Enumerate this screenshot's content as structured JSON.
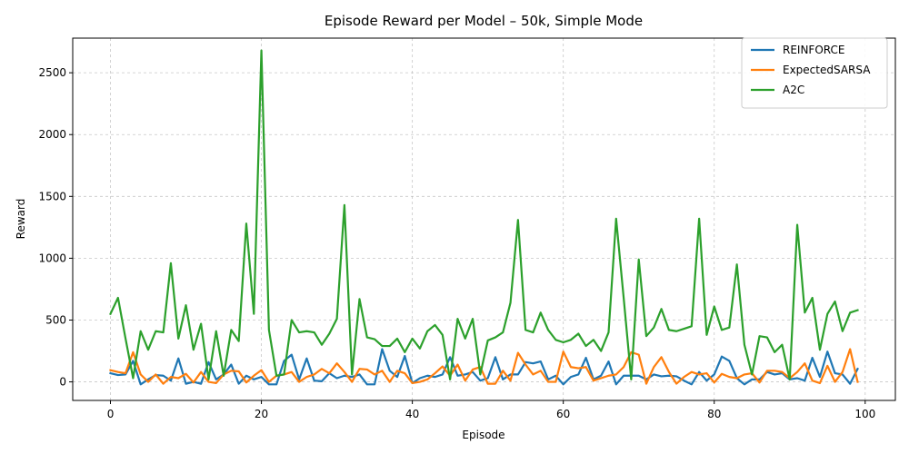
{
  "chart_data": {
    "type": "line",
    "title": "Episode Reward per Model – 50k, Simple Mode",
    "xlabel": "Episode",
    "ylabel": "Reward",
    "xlim": [
      -5,
      104
    ],
    "ylim": [
      -150,
      2780
    ],
    "xticks": [
      0,
      20,
      40,
      60,
      80,
      100
    ],
    "yticks": [
      0,
      500,
      1000,
      1500,
      2000,
      2500
    ],
    "grid": true,
    "legend_position": "top-right",
    "x": [
      0,
      1,
      2,
      3,
      4,
      5,
      6,
      7,
      8,
      9,
      10,
      11,
      12,
      13,
      14,
      15,
      16,
      17,
      18,
      19,
      20,
      21,
      22,
      23,
      24,
      25,
      26,
      27,
      28,
      29,
      30,
      31,
      32,
      33,
      34,
      35,
      36,
      37,
      38,
      39,
      40,
      41,
      42,
      43,
      44,
      45,
      46,
      47,
      48,
      49,
      50,
      51,
      52,
      53,
      54,
      55,
      56,
      57,
      58,
      59,
      60,
      61,
      62,
      63,
      64,
      65,
      66,
      67,
      68,
      69,
      70,
      71,
      72,
      73,
      74,
      75,
      76,
      77,
      78,
      79,
      80,
      81,
      82,
      83,
      84,
      85,
      86,
      87,
      88,
      89,
      90,
      91,
      92,
      93,
      94,
      95,
      96,
      97,
      98,
      99
    ],
    "series": [
      {
        "name": "REINFORCE",
        "color": "#1f77b4",
        "values": [
          70,
          55,
          60,
          170,
          -20,
          20,
          55,
          50,
          10,
          190,
          -15,
          0,
          -15,
          160,
          20,
          60,
          140,
          -15,
          50,
          20,
          40,
          -20,
          -20,
          170,
          220,
          20,
          190,
          10,
          5,
          70,
          30,
          50,
          40,
          60,
          -20,
          -20,
          265,
          90,
          40,
          210,
          -10,
          30,
          50,
          40,
          60,
          200,
          50,
          60,
          80,
          10,
          30,
          200,
          20,
          60,
          60,
          160,
          150,
          165,
          20,
          50,
          -20,
          40,
          60,
          195,
          20,
          50,
          165,
          -20,
          50,
          50,
          50,
          20,
          60,
          45,
          50,
          45,
          10,
          -20,
          80,
          10,
          60,
          205,
          170,
          30,
          -20,
          20,
          20,
          80,
          60,
          70,
          20,
          30,
          10,
          195,
          40,
          245,
          70,
          60,
          -15,
          105
        ]
      },
      {
        "name": "ExpectedSARSA",
        "color": "#ff7f0e",
        "values": [
          95,
          80,
          70,
          240,
          60,
          0,
          60,
          -15,
          40,
          30,
          65,
          -5,
          80,
          0,
          -10,
          60,
          90,
          85,
          -5,
          50,
          95,
          0,
          50,
          60,
          80,
          0,
          40,
          60,
          105,
          70,
          150,
          80,
          0,
          105,
          100,
          60,
          90,
          0,
          90,
          70,
          -10,
          0,
          20,
          70,
          125,
          50,
          140,
          10,
          100,
          120,
          -15,
          -15,
          90,
          10,
          235,
          140,
          60,
          90,
          0,
          0,
          245,
          120,
          110,
          120,
          10,
          30,
          50,
          60,
          120,
          240,
          220,
          -15,
          120,
          200,
          80,
          -15,
          40,
          80,
          60,
          70,
          -5,
          65,
          40,
          30,
          60,
          70,
          -5,
          90,
          90,
          80,
          30,
          80,
          150,
          10,
          -10,
          130,
          0,
          80,
          265,
          0
        ]
      },
      {
        "name": "A2C",
        "color": "#2ca02c",
        "values": [
          550,
          680,
          350,
          30,
          410,
          260,
          410,
          400,
          960,
          350,
          620,
          260,
          470,
          20,
          410,
          50,
          420,
          330,
          1280,
          550,
          2680,
          420,
          50,
          60,
          500,
          400,
          410,
          400,
          300,
          390,
          510,
          1430,
          60,
          670,
          360,
          345,
          290,
          290,
          350,
          240,
          350,
          270,
          410,
          460,
          380,
          20,
          510,
          350,
          510,
          60,
          335,
          360,
          400,
          640,
          1310,
          420,
          400,
          560,
          420,
          340,
          320,
          340,
          390,
          290,
          340,
          250,
          400,
          1320,
          680,
          20,
          990,
          370,
          440,
          590,
          420,
          410,
          430,
          450,
          1320,
          380,
          610,
          420,
          440,
          950,
          300,
          60,
          370,
          360,
          240,
          300,
          20,
          1270,
          560,
          680,
          260,
          550,
          650,
          410,
          560,
          580
        ]
      }
    ]
  }
}
